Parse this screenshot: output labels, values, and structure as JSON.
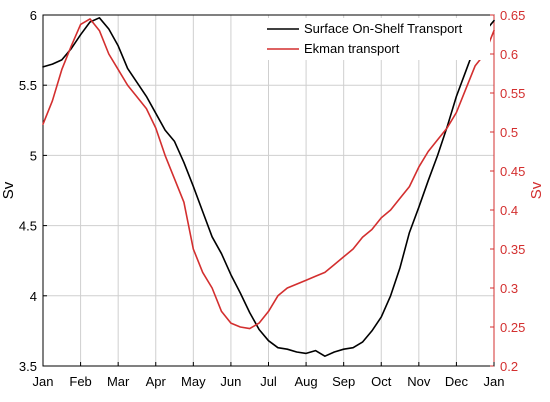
{
  "chart_data": {
    "type": "line",
    "title": "",
    "xlabel": "",
    "ylabel_left": "Sv",
    "ylabel_right": "Sv",
    "x_ticks": [
      "Jan",
      "Feb",
      "Mar",
      "Apr",
      "May",
      "Jun",
      "Jul",
      "Aug",
      "Sep",
      "Oct",
      "Nov",
      "Dec",
      "Jan"
    ],
    "xlim": [
      0,
      12
    ],
    "ylim_left": [
      3.5,
      6
    ],
    "ylim_right": [
      0.2,
      0.65
    ],
    "y_ticks_left": [
      "3.5",
      "4",
      "4.5",
      "5",
      "5.5",
      "6"
    ],
    "y_ticks_right": [
      "0.2",
      "0.25",
      "0.3",
      "0.35",
      "0.4",
      "0.45",
      "0.5",
      "0.55",
      "0.6",
      "0.65"
    ],
    "grid": true,
    "legend_position": "top-right",
    "series": [
      {
        "name": "Surface On-Shelf Transport",
        "axis": "left",
        "color": "#000000",
        "x": [
          0,
          0.25,
          0.5,
          0.75,
          1.0,
          1.25,
          1.5,
          1.75,
          2.0,
          2.25,
          2.5,
          2.75,
          3.0,
          3.25,
          3.5,
          3.75,
          4.0,
          4.25,
          4.5,
          4.75,
          5.0,
          5.25,
          5.5,
          5.75,
          6.0,
          6.25,
          6.5,
          6.75,
          7.0,
          7.25,
          7.5,
          7.75,
          8.0,
          8.25,
          8.5,
          8.75,
          9.0,
          9.25,
          9.5,
          9.75,
          10.0,
          10.25,
          10.5,
          10.75,
          11.0,
          11.25,
          11.5,
          11.75,
          12.0
        ],
        "values": [
          5.63,
          5.65,
          5.68,
          5.76,
          5.86,
          5.95,
          5.98,
          5.9,
          5.78,
          5.62,
          5.52,
          5.42,
          5.3,
          5.18,
          5.1,
          4.95,
          4.78,
          4.6,
          4.42,
          4.3,
          4.15,
          4.02,
          3.88,
          3.76,
          3.68,
          3.63,
          3.62,
          3.6,
          3.59,
          3.61,
          3.57,
          3.6,
          3.62,
          3.63,
          3.67,
          3.75,
          3.85,
          4.0,
          4.2,
          4.45,
          4.63,
          4.82,
          5.0,
          5.2,
          5.42,
          5.6,
          5.78,
          5.88,
          5.96
        ]
      },
      {
        "name": "Ekman transport",
        "axis": "right",
        "color": "#d32f2f",
        "x": [
          0,
          0.25,
          0.5,
          0.75,
          1.0,
          1.25,
          1.5,
          1.75,
          2.0,
          2.25,
          2.5,
          2.75,
          3.0,
          3.25,
          3.5,
          3.75,
          4.0,
          4.25,
          4.5,
          4.75,
          5.0,
          5.25,
          5.5,
          5.75,
          6.0,
          6.25,
          6.5,
          6.75,
          7.0,
          7.25,
          7.5,
          7.75,
          8.0,
          8.25,
          8.5,
          8.75,
          9.0,
          9.25,
          9.5,
          9.75,
          10.0,
          10.25,
          10.5,
          10.75,
          11.0,
          11.25,
          11.5,
          11.75,
          12.0
        ],
        "values": [
          0.51,
          0.54,
          0.58,
          0.61,
          0.638,
          0.645,
          0.63,
          0.6,
          0.58,
          0.56,
          0.545,
          0.53,
          0.505,
          0.47,
          0.44,
          0.41,
          0.35,
          0.32,
          0.3,
          0.27,
          0.255,
          0.25,
          0.248,
          0.255,
          0.27,
          0.29,
          0.3,
          0.305,
          0.31,
          0.315,
          0.32,
          0.33,
          0.34,
          0.35,
          0.365,
          0.375,
          0.39,
          0.4,
          0.415,
          0.43,
          0.455,
          0.475,
          0.49,
          0.505,
          0.525,
          0.555,
          0.585,
          0.6,
          0.63
        ]
      }
    ]
  }
}
